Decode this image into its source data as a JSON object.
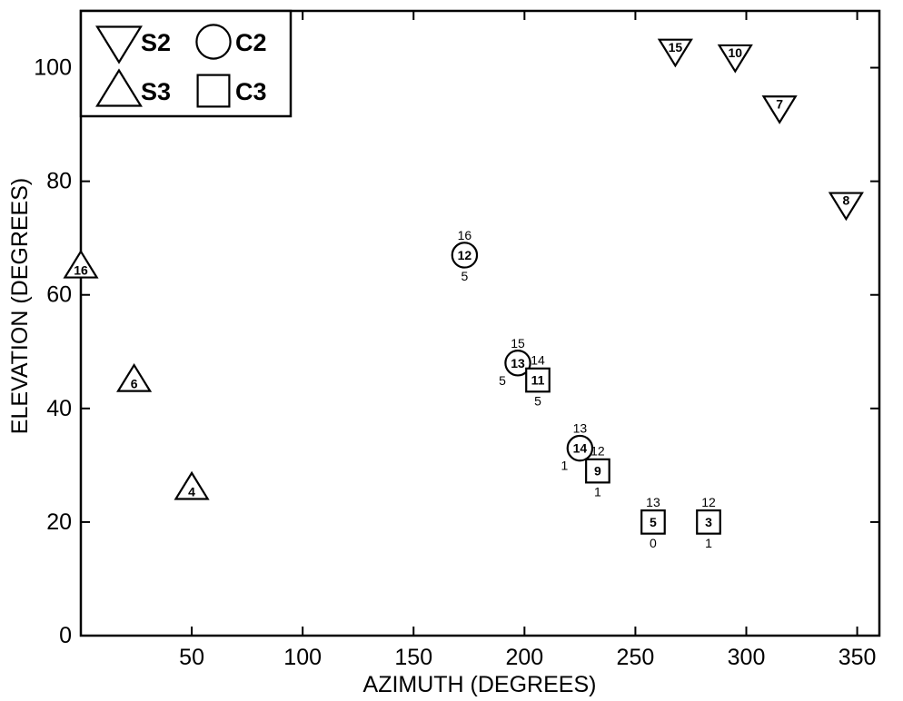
{
  "chart_data": {
    "type": "scatter",
    "xlabel": "AZIMUTH (DEGREES)",
    "ylabel": "ELEVATION (DEGREES)",
    "xlim": [
      0,
      360
    ],
    "ylim": [
      0,
      110
    ],
    "xticks": [
      50,
      100,
      150,
      200,
      250,
      300,
      350
    ],
    "yticks": [
      0,
      20,
      40,
      60,
      80,
      100
    ],
    "legend_position": "top-left",
    "grid": false,
    "series": [
      {
        "name": "S2",
        "marker": "triangle-down",
        "points": [
          {
            "x": 268,
            "y": 103,
            "label": "15"
          },
          {
            "x": 295,
            "y": 102,
            "label": "10"
          },
          {
            "x": 315,
            "y": 93,
            "label": "7"
          },
          {
            "x": 345,
            "y": 76,
            "label": "8"
          }
        ]
      },
      {
        "name": "C2",
        "marker": "circle",
        "points": [
          {
            "x": 173,
            "y": 67,
            "label": "12",
            "above": "16",
            "below": "5"
          },
          {
            "x": 197,
            "y": 48,
            "label": "13",
            "above": "15",
            "left": "5"
          },
          {
            "x": 225,
            "y": 33,
            "label": "14",
            "above": "13",
            "left": "1"
          }
        ]
      },
      {
        "name": "S3",
        "marker": "triangle-up",
        "points": [
          {
            "x": 0,
            "y": 65,
            "label": "16"
          },
          {
            "x": 24,
            "y": 45,
            "label": "6"
          },
          {
            "x": 50,
            "y": 26,
            "label": "4"
          }
        ]
      },
      {
        "name": "C3",
        "marker": "square",
        "points": [
          {
            "x": 206,
            "y": 45,
            "label": "11",
            "above": "14",
            "below": "5"
          },
          {
            "x": 233,
            "y": 29,
            "label": "9",
            "above": "12",
            "below": "1"
          },
          {
            "x": 258,
            "y": 20,
            "label": "5",
            "above": "13",
            "below": "0"
          },
          {
            "x": 283,
            "y": 20,
            "label": "3",
            "above": "12",
            "below": "1"
          }
        ]
      }
    ]
  }
}
